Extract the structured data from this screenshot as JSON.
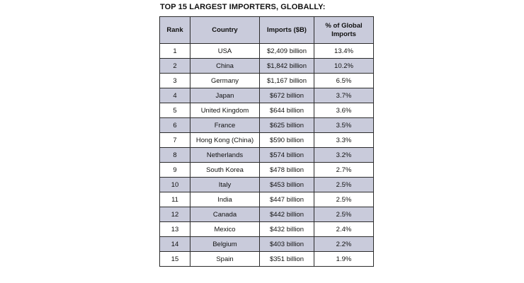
{
  "title": "TOP 15 LARGEST IMPORTERS, GLOBALLY:",
  "chart_data": {
    "type": "table",
    "title": "TOP 15 LARGEST IMPORTERS, GLOBALLY:",
    "columns": [
      "Rank",
      "Country",
      "Imports ($B)",
      "% of Global Imports"
    ],
    "rows": [
      [
        "1",
        "USA",
        "$2,409 billion",
        "13.4%"
      ],
      [
        "2",
        "China",
        "$1,842 billion",
        "10.2%"
      ],
      [
        "3",
        "Germany",
        "$1,167 billion",
        "6.5%"
      ],
      [
        "4",
        "Japan",
        "$672 billion",
        "3.7%"
      ],
      [
        "5",
        "United Kingdom",
        "$644 billion",
        "3.6%"
      ],
      [
        "6",
        "France",
        "$625 billion",
        "3.5%"
      ],
      [
        "7",
        "Hong Kong (China)",
        "$590 billion",
        "3.3%"
      ],
      [
        "8",
        "Netherlands",
        "$574 billion",
        "3.2%"
      ],
      [
        "9",
        "South Korea",
        "$478 billion",
        "2.7%"
      ],
      [
        "10",
        "Italy",
        "$453 billion",
        "2.5%"
      ],
      [
        "11",
        "India",
        "$447 billion",
        "2.5%"
      ],
      [
        "12",
        "Canada",
        "$442 billion",
        "2.5%"
      ],
      [
        "13",
        "Mexico",
        "$432 billion",
        "2.4%"
      ],
      [
        "14",
        "Belgium",
        "$403 billion",
        "2.2%"
      ],
      [
        "15",
        "Spain",
        "$351 billion",
        "1.9%"
      ]
    ],
    "header_fill": "#c9cbdb",
    "stripe_fill": "#c9cbdb",
    "border_color": "#2b2b2b"
  }
}
